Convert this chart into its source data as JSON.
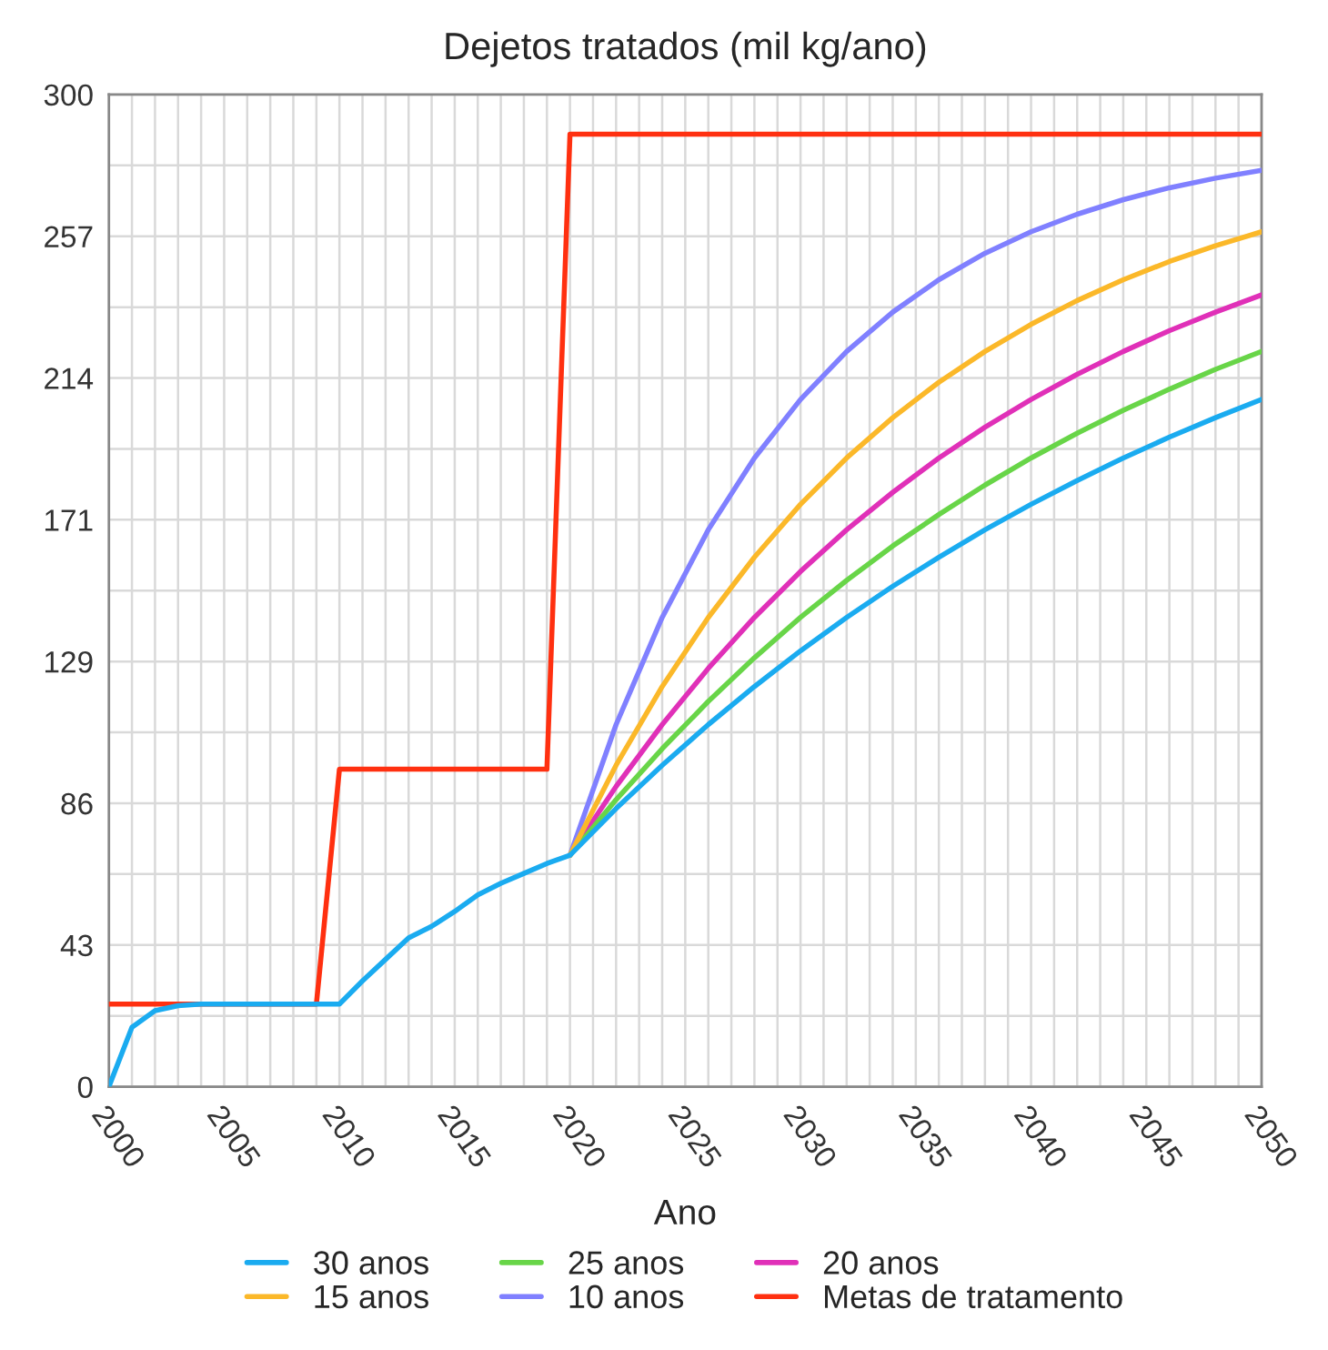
{
  "chart_data": {
    "type": "line",
    "title": "Dejetos tratados (mil kg/ano)",
    "xlabel": "Ano",
    "xlim": [
      2000,
      2050
    ],
    "ylim": [
      0,
      300
    ],
    "xticks": [
      2000,
      {
        "value": 2001,
        "label": null
      },
      {
        "value": 2002,
        "label": null
      },
      {
        "value": 2003,
        "label": null
      },
      {
        "value": 2004,
        "label": null
      },
      2005,
      {
        "value": 2006,
        "label": null
      },
      {
        "value": 2007,
        "label": null
      },
      {
        "value": 2008,
        "label": null
      },
      {
        "value": 2009,
        "label": null
      },
      2010,
      {
        "value": 2011,
        "label": null
      },
      {
        "value": 2012,
        "label": null
      },
      {
        "value": 2013,
        "label": null
      },
      {
        "value": 2014,
        "label": null
      },
      2015,
      {
        "value": 2016,
        "label": null
      },
      {
        "value": 2017,
        "label": null
      },
      {
        "value": 2018,
        "label": null
      },
      {
        "value": 2019,
        "label": null
      },
      2020,
      {
        "value": 2021,
        "label": null
      },
      {
        "value": 2022,
        "label": null
      },
      {
        "value": 2023,
        "label": null
      },
      {
        "value": 2024,
        "label": null
      },
      2025,
      {
        "value": 2026,
        "label": null
      },
      {
        "value": 2027,
        "label": null
      },
      {
        "value": 2028,
        "label": null
      },
      {
        "value": 2029,
        "label": null
      },
      2030,
      {
        "value": 2031,
        "label": null
      },
      {
        "value": 2032,
        "label": null
      },
      {
        "value": 2033,
        "label": null
      },
      {
        "value": 2034,
        "label": null
      },
      2035,
      {
        "value": 2036,
        "label": null
      },
      {
        "value": 2037,
        "label": null
      },
      {
        "value": 2038,
        "label": null
      },
      {
        "value": 2039,
        "label": null
      },
      2040,
      {
        "value": 2041,
        "label": null
      },
      {
        "value": 2042,
        "label": null
      },
      {
        "value": 2043,
        "label": null
      },
      {
        "value": 2044,
        "label": null
      },
      2045,
      {
        "value": 2046,
        "label": null
      },
      {
        "value": 2047,
        "label": null
      },
      {
        "value": 2048,
        "label": null
      },
      {
        "value": 2049,
        "label": null
      },
      2050
    ],
    "yticks": [
      0,
      {
        "value": 21.43,
        "label": null
      },
      {
        "value": 42.86,
        "label": "43"
      },
      {
        "value": 64.29,
        "label": null
      },
      {
        "value": 85.71,
        "label": "86"
      },
      {
        "value": 107.14,
        "label": null
      },
      {
        "value": 128.57,
        "label": "129"
      },
      {
        "value": 150,
        "label": null
      },
      {
        "value": 171.43,
        "label": "171"
      },
      {
        "value": 192.86,
        "label": null
      },
      {
        "value": 214.29,
        "label": "214"
      },
      {
        "value": 235.71,
        "label": null
      },
      {
        "value": 257.14,
        "label": "257"
      },
      {
        "value": 278.57,
        "label": null
      },
      300
    ],
    "grid": true,
    "legend": "bottom",
    "marker": "none",
    "line_style": "solid",
    "series": [
      {
        "name": "30 anos",
        "color": "#1aabf0",
        "x": [
          2000,
          2001,
          2002,
          2003,
          2004,
          2005,
          2006,
          2007,
          2008,
          2009,
          2010,
          2011,
          2012,
          2013,
          2014,
          2015,
          2016,
          2017,
          2018,
          2019,
          2020,
          2022,
          2024,
          2026,
          2028,
          2030,
          2032,
          2034,
          2036,
          2038,
          2040,
          2042,
          2044,
          2046,
          2048,
          2050
        ],
        "values": [
          0,
          18,
          23,
          24.5,
          25,
          25,
          25,
          25,
          25,
          25,
          25,
          32,
          38.5,
          45,
          48.5,
          53,
          58,
          61.5,
          64.5,
          67.5,
          70,
          84.1,
          97.2,
          109.5,
          121.0,
          131.8,
          141.9,
          151.3,
          160.1,
          168.4,
          176.1,
          183.3,
          190.1,
          196.4,
          202.3,
          207.8
        ]
      },
      {
        "name": "15 anos",
        "color": "#fbb829",
        "x": [
          2020,
          2022,
          2024,
          2026,
          2028,
          2030,
          2032,
          2034,
          2036,
          2038,
          2040,
          2042,
          2044,
          2046,
          2048,
          2050
        ],
        "values": [
          70,
          97.2,
          121.0,
          141.9,
          160.1,
          176.1,
          190.1,
          202.3,
          213.0,
          222.3,
          230.5,
          237.7,
          244.0,
          249.5,
          254.3,
          258.5
        ]
      },
      {
        "name": "25 anos",
        "color": "#68d548",
        "x": [
          2020,
          2022,
          2024,
          2026,
          2028,
          2030,
          2032,
          2034,
          2036,
          2038,
          2040,
          2042,
          2044,
          2046,
          2048,
          2050
        ],
        "values": [
          70,
          86.8,
          102.2,
          116.5,
          129.7,
          141.9,
          153.1,
          163.5,
          173.0,
          181.9,
          190.1,
          197.6,
          204.5,
          210.9,
          216.9,
          222.3
        ]
      },
      {
        "name": "10 anos",
        "color": "#8080ff",
        "x": [
          2020,
          2022,
          2024,
          2026,
          2028,
          2030,
          2032,
          2034,
          2036,
          2038,
          2040,
          2042,
          2044,
          2046,
          2048,
          2050
        ],
        "values": [
          70,
          109.5,
          141.9,
          168.4,
          190.1,
          207.8,
          222.3,
          234.2,
          244.0,
          252.0,
          258.5,
          263.8,
          268.2,
          271.8,
          274.7,
          277.1
        ]
      },
      {
        "name": "20 anos",
        "color": "#e030b8",
        "x": [
          2020,
          2022,
          2024,
          2026,
          2028,
          2030,
          2032,
          2034,
          2036,
          2038,
          2040,
          2042,
          2044,
          2046,
          2048,
          2050
        ],
        "values": [
          70,
          90.8,
          109.5,
          126.5,
          141.9,
          155.8,
          168.4,
          179.7,
          190.1,
          199.4,
          207.8,
          215.4,
          222.3,
          228.6,
          234.2,
          239.4
        ]
      },
      {
        "name": "Metas de tratamento",
        "color": "#ff3010",
        "x": [
          2000,
          2009,
          2010,
          2019,
          2020,
          2050
        ],
        "values": [
          25,
          25,
          96,
          96,
          288,
          288
        ]
      }
    ]
  }
}
